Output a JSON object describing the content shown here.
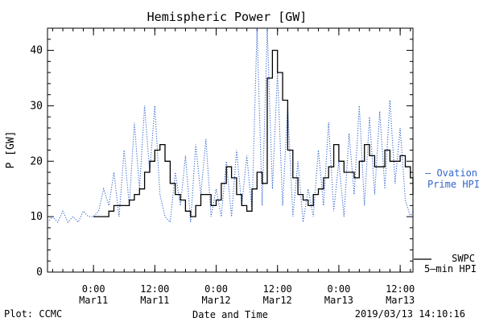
{
  "chart_data": {
    "type": "line",
    "title": "Hemispheric Power [GW]",
    "xlabel": "Date and Time",
    "ylabel": "P [GW]",
    "ylim": [
      0,
      44
    ],
    "xlim": [
      "2019-03-10 15:00",
      "2019-03-13 14:30"
    ],
    "yticks": [
      0,
      10,
      20,
      30,
      40
    ],
    "xticks": [
      {
        "x": "2019-03-11 00:00",
        "line1": "0:00",
        "line2": "Mar11"
      },
      {
        "x": "2019-03-11 12:00",
        "line1": "12:00",
        "line2": "Mar11"
      },
      {
        "x": "2019-03-12 00:00",
        "line1": "0:00",
        "line2": "Mar12"
      },
      {
        "x": "2019-03-12 12:00",
        "line1": "12:00",
        "line2": "Mar12"
      },
      {
        "x": "2019-03-13 00:00",
        "line1": "0:00",
        "line2": "Mar13"
      },
      {
        "x": "2019-03-13 12:00",
        "line1": "12:00",
        "line2": "Mar13"
      }
    ],
    "grid": false,
    "legend_position": "right",
    "series": [
      {
        "name": "Ovation Prime HPI",
        "legend_label": [
          "– Ovation",
          "Prime HPI"
        ],
        "color": "#3366cc",
        "style": "dotted",
        "points": [
          [
            "2019-03-10 15:00",
            9
          ],
          [
            "2019-03-10 16:00",
            10
          ],
          [
            "2019-03-10 17:00",
            9
          ],
          [
            "2019-03-10 18:00",
            11
          ],
          [
            "2019-03-10 19:00",
            9
          ],
          [
            "2019-03-10 20:00",
            10
          ],
          [
            "2019-03-10 21:00",
            9
          ],
          [
            "2019-03-10 22:00",
            11
          ],
          [
            "2019-03-10 23:00",
            10
          ],
          [
            "2019-03-11 00:00",
            10
          ],
          [
            "2019-03-11 01:00",
            11
          ],
          [
            "2019-03-11 02:00",
            15
          ],
          [
            "2019-03-11 03:00",
            12
          ],
          [
            "2019-03-11 04:00",
            18
          ],
          [
            "2019-03-11 05:00",
            10
          ],
          [
            "2019-03-11 06:00",
            22
          ],
          [
            "2019-03-11 07:00",
            12
          ],
          [
            "2019-03-11 08:00",
            27
          ],
          [
            "2019-03-11 09:00",
            15
          ],
          [
            "2019-03-11 10:00",
            30
          ],
          [
            "2019-03-11 11:00",
            18
          ],
          [
            "2019-03-11 12:00",
            30
          ],
          [
            "2019-03-11 13:00",
            14
          ],
          [
            "2019-03-11 14:00",
            10
          ],
          [
            "2019-03-11 15:00",
            9
          ],
          [
            "2019-03-11 16:00",
            18
          ],
          [
            "2019-03-11 17:00",
            12
          ],
          [
            "2019-03-11 18:00",
            21
          ],
          [
            "2019-03-11 19:00",
            9
          ],
          [
            "2019-03-11 20:00",
            23
          ],
          [
            "2019-03-11 21:00",
            14
          ],
          [
            "2019-03-11 22:00",
            24
          ],
          [
            "2019-03-11 23:00",
            10
          ],
          [
            "2019-03-12 00:00",
            15
          ],
          [
            "2019-03-12 01:00",
            10
          ],
          [
            "2019-03-12 02:00",
            20
          ],
          [
            "2019-03-12 03:00",
            10
          ],
          [
            "2019-03-12 04:00",
            22
          ],
          [
            "2019-03-12 05:00",
            12
          ],
          [
            "2019-03-12 06:00",
            21
          ],
          [
            "2019-03-12 07:00",
            11
          ],
          [
            "2019-03-12 08:00",
            44
          ],
          [
            "2019-03-12 09:00",
            12
          ],
          [
            "2019-03-12 10:00",
            44
          ],
          [
            "2019-03-12 11:00",
            15
          ],
          [
            "2019-03-12 12:00",
            36
          ],
          [
            "2019-03-12 13:00",
            12
          ],
          [
            "2019-03-12 14:00",
            30
          ],
          [
            "2019-03-12 15:00",
            10
          ],
          [
            "2019-03-12 16:00",
            20
          ],
          [
            "2019-03-12 17:00",
            9
          ],
          [
            "2019-03-12 18:00",
            15
          ],
          [
            "2019-03-12 19:00",
            10
          ],
          [
            "2019-03-12 20:00",
            22
          ],
          [
            "2019-03-12 21:00",
            12
          ],
          [
            "2019-03-12 22:00",
            27
          ],
          [
            "2019-03-12 23:00",
            11
          ],
          [
            "2019-03-13 00:00",
            20
          ],
          [
            "2019-03-13 01:00",
            10
          ],
          [
            "2019-03-13 02:00",
            25
          ],
          [
            "2019-03-13 03:00",
            14
          ],
          [
            "2019-03-13 04:00",
            30
          ],
          [
            "2019-03-13 05:00",
            12
          ],
          [
            "2019-03-13 06:00",
            28
          ],
          [
            "2019-03-13 07:00",
            14
          ],
          [
            "2019-03-13 08:00",
            29
          ],
          [
            "2019-03-13 09:00",
            15
          ],
          [
            "2019-03-13 10:00",
            31
          ],
          [
            "2019-03-13 11:00",
            16
          ],
          [
            "2019-03-13 12:00",
            26
          ],
          [
            "2019-03-13 13:00",
            13
          ],
          [
            "2019-03-13 14:00",
            10
          ],
          [
            "2019-03-13 14:30",
            11
          ]
        ]
      },
      {
        "name": "SWPC 5-min HPI",
        "legend_label": [
          "SWPC",
          "5–min HPI"
        ],
        "color": "#000000",
        "style": "solid",
        "points": [
          [
            "2019-03-11 00:00",
            10
          ],
          [
            "2019-03-11 03:00",
            11
          ],
          [
            "2019-03-11 04:00",
            12
          ],
          [
            "2019-03-11 07:00",
            13
          ],
          [
            "2019-03-11 08:00",
            14
          ],
          [
            "2019-03-11 09:00",
            15
          ],
          [
            "2019-03-11 10:00",
            18
          ],
          [
            "2019-03-11 11:00",
            20
          ],
          [
            "2019-03-11 12:00",
            22
          ],
          [
            "2019-03-11 13:00",
            23
          ],
          [
            "2019-03-11 14:00",
            20
          ],
          [
            "2019-03-11 15:00",
            16
          ],
          [
            "2019-03-11 16:00",
            14
          ],
          [
            "2019-03-11 17:00",
            13
          ],
          [
            "2019-03-11 18:00",
            11
          ],
          [
            "2019-03-11 19:00",
            10
          ],
          [
            "2019-03-11 20:00",
            12
          ],
          [
            "2019-03-11 21:00",
            14
          ],
          [
            "2019-03-11 22:00",
            14
          ],
          [
            "2019-03-11 23:00",
            12
          ],
          [
            "2019-03-12 00:00",
            13
          ],
          [
            "2019-03-12 01:00",
            16
          ],
          [
            "2019-03-12 02:00",
            19
          ],
          [
            "2019-03-12 03:00",
            17
          ],
          [
            "2019-03-12 04:00",
            14
          ],
          [
            "2019-03-12 05:00",
            12
          ],
          [
            "2019-03-12 06:00",
            11
          ],
          [
            "2019-03-12 07:00",
            15
          ],
          [
            "2019-03-12 08:00",
            18
          ],
          [
            "2019-03-12 09:00",
            16
          ],
          [
            "2019-03-12 10:00",
            35
          ],
          [
            "2019-03-12 11:00",
            40
          ],
          [
            "2019-03-12 12:00",
            36
          ],
          [
            "2019-03-12 13:00",
            31
          ],
          [
            "2019-03-12 14:00",
            22
          ],
          [
            "2019-03-12 15:00",
            17
          ],
          [
            "2019-03-12 16:00",
            14
          ],
          [
            "2019-03-12 17:00",
            13
          ],
          [
            "2019-03-12 18:00",
            12
          ],
          [
            "2019-03-12 19:00",
            14
          ],
          [
            "2019-03-12 20:00",
            15
          ],
          [
            "2019-03-12 21:00",
            17
          ],
          [
            "2019-03-12 22:00",
            19
          ],
          [
            "2019-03-12 23:00",
            23
          ],
          [
            "2019-03-13 00:00",
            20
          ],
          [
            "2019-03-13 01:00",
            18
          ],
          [
            "2019-03-13 02:00",
            18
          ],
          [
            "2019-03-13 03:00",
            17
          ],
          [
            "2019-03-13 04:00",
            20
          ],
          [
            "2019-03-13 05:00",
            23
          ],
          [
            "2019-03-13 06:00",
            21
          ],
          [
            "2019-03-13 07:00",
            19
          ],
          [
            "2019-03-13 08:00",
            19
          ],
          [
            "2019-03-13 09:00",
            22
          ],
          [
            "2019-03-13 10:00",
            20
          ],
          [
            "2019-03-13 11:00",
            20
          ],
          [
            "2019-03-13 12:00",
            21
          ],
          [
            "2019-03-13 13:00",
            19
          ],
          [
            "2019-03-13 14:00",
            17
          ],
          [
            "2019-03-13 14:30",
            14
          ]
        ]
      }
    ]
  },
  "footer": {
    "plot_credit": "Plot: CCMC",
    "timestamp": "2019/03/13 14:10:16"
  }
}
